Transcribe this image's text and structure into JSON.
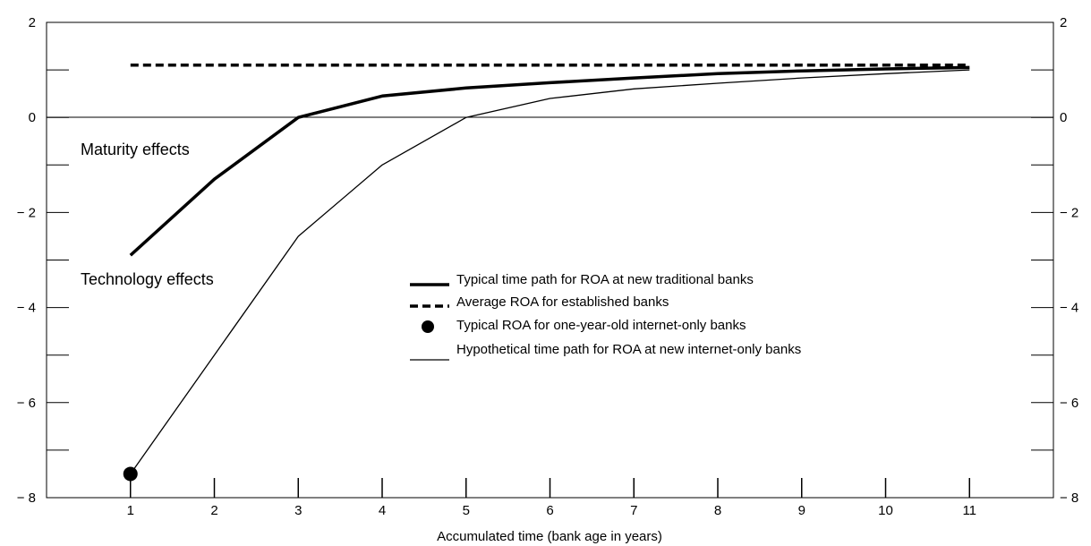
{
  "chart_data": {
    "type": "line",
    "xlabel": "Accumulated time (bank age in years)",
    "ylabel": "",
    "xlim": [
      0,
      12
    ],
    "ylim": [
      -8,
      2
    ],
    "x_ticks": [
      1,
      2,
      3,
      4,
      5,
      6,
      7,
      8,
      9,
      10,
      11
    ],
    "x_tick_labels": [
      "1",
      "2",
      "3",
      "4",
      "5",
      "6",
      "7",
      "8",
      "9",
      "10",
      "11"
    ],
    "y_major_ticks": [
      2,
      0,
      -2,
      -4,
      -6,
      -8
    ],
    "y_tick_labels": [
      "2",
      "0",
      "− 2",
      "− 4",
      "− 6",
      "− 8"
    ],
    "y_minor_ticks": [
      1,
      -1,
      -3,
      -5,
      -7
    ],
    "zero_line": true,
    "grid": false,
    "dual_y_axis": true,
    "legend_position": "center-right",
    "annotations": [
      "Maturity effects",
      "Technology effects"
    ],
    "series": [
      {
        "name": "Typical time path for ROA at new traditional banks",
        "style": "thick-solid",
        "color": "#000000",
        "x": [
          1,
          2,
          3,
          4,
          5,
          6,
          7,
          8,
          9,
          10,
          11
        ],
        "y": [
          -2.9,
          -1.3,
          0.0,
          0.45,
          0.62,
          0.73,
          0.83,
          0.92,
          0.98,
          1.02,
          1.05
        ]
      },
      {
        "name": "Average ROA for established banks",
        "style": "thick-dashed",
        "color": "#000000",
        "x": [
          1,
          11
        ],
        "y": [
          1.1,
          1.1
        ]
      },
      {
        "name": "Typical ROA for one-year-old internet-only banks",
        "style": "marker",
        "color": "#000000",
        "x": [
          1
        ],
        "y": [
          -7.5
        ]
      },
      {
        "name": "Hypothetical time path for ROA at new internet-only banks",
        "style": "thin-solid",
        "color": "#000000",
        "x": [
          1,
          2,
          3,
          4,
          5,
          6,
          7,
          8,
          9,
          10,
          11
        ],
        "y": [
          -7.5,
          -5.0,
          -2.5,
          -1.0,
          0.0,
          0.4,
          0.6,
          0.72,
          0.83,
          0.92,
          1.0
        ]
      }
    ]
  }
}
